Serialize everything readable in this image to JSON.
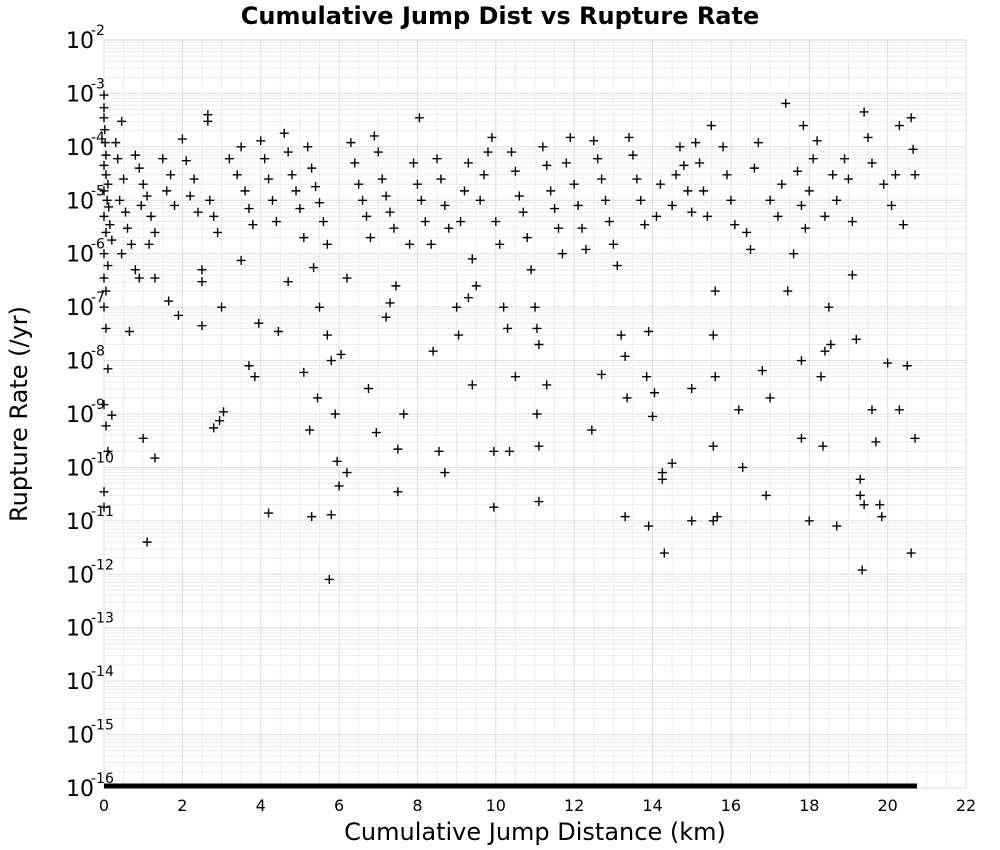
{
  "chart_data": {
    "type": "scatter",
    "title": "Cumulative Jump Dist vs Rupture Rate",
    "xlabel": "Cumulative Jump Distance (km)",
    "ylabel": "Rupture Rate (/yr)",
    "xlim": [
      0,
      22
    ],
    "ylim_log10": [
      -16,
      -2
    ],
    "y_scale": "log",
    "grid": true,
    "marker": "plus",
    "marker_color": "#000000",
    "x_ticks": [
      "0",
      "2",
      "4",
      "6",
      "8",
      "10",
      "12",
      "14",
      "16",
      "18",
      "20",
      "22"
    ],
    "y_ticks": [
      {
        "base": "10",
        "exp": "-2"
      },
      {
        "base": "10",
        "exp": "-3"
      },
      {
        "base": "10",
        "exp": "-4"
      },
      {
        "base": "10",
        "exp": "-5"
      },
      {
        "base": "10",
        "exp": "-6"
      },
      {
        "base": "10",
        "exp": "-7"
      },
      {
        "base": "10",
        "exp": "-8"
      },
      {
        "base": "10",
        "exp": "-9"
      },
      {
        "base": "10",
        "exp": "-10"
      },
      {
        "base": "10",
        "exp": "-11"
      },
      {
        "base": "10",
        "exp": "-12"
      },
      {
        "base": "10",
        "exp": "-13"
      },
      {
        "base": "10",
        "exp": "-14"
      },
      {
        "base": "10",
        "exp": "-15"
      },
      {
        "base": "10",
        "exp": "-16"
      }
    ],
    "points": [
      [
        0.0,
        0.00093
      ],
      [
        0.0,
        0.00054
      ],
      [
        0.0,
        0.00035
      ],
      [
        0.02,
        0.00021
      ],
      [
        0.03,
        0.00012
      ],
      [
        0.05,
        7e-05
      ],
      [
        0.0,
        4.5e-05
      ],
      [
        0.05,
        3e-05
      ],
      [
        0.1,
        2e-05
      ],
      [
        0.0,
        1.5e-05
      ],
      [
        0.08,
        1e-05
      ],
      [
        0.12,
        7.5e-06
      ],
      [
        0.0,
        5e-06
      ],
      [
        0.15,
        3.5e-06
      ],
      [
        0.05,
        2.5e-06
      ],
      [
        0.2,
        1.8e-06
      ],
      [
        0.0,
        1e-06
      ],
      [
        0.1,
        6e-07
      ],
      [
        0.0,
        3.5e-07
      ],
      [
        0.05,
        2e-07
      ],
      [
        0.0,
        1e-07
      ],
      [
        0.05,
        4e-08
      ],
      [
        0.1,
        7e-09
      ],
      [
        0.0,
        1.5e-09
      ],
      [
        0.05,
        6e-10
      ],
      [
        0.1,
        2e-10
      ],
      [
        0.0,
        3.5e-11
      ],
      [
        0.0,
        1.8e-11
      ],
      [
        0.2,
        9.5e-10
      ],
      [
        0.3,
        0.00012
      ],
      [
        0.45,
        0.0003
      ],
      [
        0.35,
        6e-05
      ],
      [
        0.5,
        2.5e-05
      ],
      [
        0.4,
        1e-05
      ],
      [
        0.55,
        6e-06
      ],
      [
        0.6,
        3e-06
      ],
      [
        0.7,
        1.5e-06
      ],
      [
        0.8,
        5e-07
      ],
      [
        0.45,
        1e-06
      ],
      [
        0.8,
        7e-05
      ],
      [
        0.9,
        4e-05
      ],
      [
        1.0,
        2e-05
      ],
      [
        1.1,
        1.2e-05
      ],
      [
        0.95,
        8e-06
      ],
      [
        1.2,
        5e-06
      ],
      [
        1.3,
        2.5e-06
      ],
      [
        1.15,
        1.5e-06
      ],
      [
        0.9,
        3.5e-07
      ],
      [
        1.3,
        3.5e-07
      ],
      [
        1.5,
        6e-05
      ],
      [
        1.7,
        3e-05
      ],
      [
        1.6,
        1.5e-05
      ],
      [
        1.8,
        8e-06
      ],
      [
        1.65,
        1.3e-07
      ],
      [
        1.9,
        7e-08
      ],
      [
        2.0,
        0.00014
      ],
      [
        2.1,
        5.5e-05
      ],
      [
        2.3,
        2.5e-05
      ],
      [
        2.2,
        1.2e-05
      ],
      [
        2.4,
        6e-06
      ],
      [
        2.5,
        3e-07
      ],
      [
        2.5,
        5e-07
      ],
      [
        2.5,
        4.5e-08
      ],
      [
        2.65,
        0.0004
      ],
      [
        2.65,
        0.0003
      ],
      [
        2.7,
        1e-05
      ],
      [
        2.8,
        5e-06
      ],
      [
        2.9,
        2.5e-06
      ],
      [
        3.0,
        1e-07
      ],
      [
        2.8,
        5.5e-10
      ],
      [
        2.95,
        7.5e-10
      ],
      [
        3.05,
        1.1e-09
      ],
      [
        0.65,
        3.5e-08
      ],
      [
        1.0,
        3.5e-10
      ],
      [
        1.3,
        1.5e-10
      ],
      [
        1.1,
        4e-12
      ],
      [
        3.2,
        6e-05
      ],
      [
        3.4,
        3e-05
      ],
      [
        3.5,
        0.0001
      ],
      [
        3.6,
        1.5e-05
      ],
      [
        3.7,
        7e-06
      ],
      [
        3.8,
        3.5e-06
      ],
      [
        3.5,
        7.5e-07
      ],
      [
        3.7,
        8e-09
      ],
      [
        3.85,
        5e-09
      ],
      [
        3.95,
        5e-08
      ],
      [
        4.0,
        0.00013
      ],
      [
        4.1,
        6e-05
      ],
      [
        4.2,
        2.5e-05
      ],
      [
        4.3,
        1e-05
      ],
      [
        4.4,
        4e-06
      ],
      [
        4.45,
        3.5e-08
      ],
      [
        4.2,
        1.4e-11
      ],
      [
        4.6,
        0.00018
      ],
      [
        4.7,
        8e-05
      ],
      [
        4.8,
        3e-05
      ],
      [
        4.9,
        1.5e-05
      ],
      [
        5.0,
        7e-06
      ],
      [
        4.7,
        3e-07
      ],
      [
        5.1,
        2e-06
      ],
      [
        5.2,
        0.0001
      ],
      [
        5.3,
        4e-05
      ],
      [
        5.4,
        1.8e-05
      ],
      [
        5.5,
        9e-06
      ],
      [
        5.6,
        4e-06
      ],
      [
        5.7,
        1.5e-06
      ],
      [
        5.35,
        5.5e-07
      ],
      [
        5.5,
        1e-07
      ],
      [
        5.1,
        6e-09
      ],
      [
        5.45,
        2e-09
      ],
      [
        5.25,
        5e-10
      ],
      [
        5.3,
        1.2e-11
      ],
      [
        5.7,
        3e-08
      ],
      [
        5.8,
        1e-08
      ],
      [
        5.8,
        1.3e-11
      ],
      [
        5.75,
        8e-13
      ],
      [
        5.9,
        1e-09
      ],
      [
        5.95,
        1.3e-10
      ],
      [
        6.0,
        4.5e-11
      ],
      [
        6.05,
        1.3e-08
      ],
      [
        6.2,
        8e-11
      ],
      [
        6.2,
        3.5e-07
      ],
      [
        6.3,
        0.00012
      ],
      [
        6.4,
        5e-05
      ],
      [
        6.5,
        2e-05
      ],
      [
        6.6,
        1e-05
      ],
      [
        6.7,
        5e-06
      ],
      [
        6.8,
        2e-06
      ],
      [
        6.9,
        0.00016
      ],
      [
        7.0,
        8e-05
      ],
      [
        6.75,
        3e-09
      ],
      [
        6.95,
        4.5e-10
      ],
      [
        7.1,
        2.5e-05
      ],
      [
        7.2,
        1.2e-05
      ],
      [
        7.3,
        6e-06
      ],
      [
        7.4,
        3e-06
      ],
      [
        7.2,
        6.5e-08
      ],
      [
        7.3,
        1.2e-07
      ],
      [
        7.45,
        2.5e-07
      ],
      [
        7.5,
        3.5e-11
      ],
      [
        7.5,
        2.2e-10
      ],
      [
        7.65,
        1e-09
      ],
      [
        7.8,
        1.5e-06
      ],
      [
        7.9,
        5e-05
      ],
      [
        8.0,
        2e-05
      ],
      [
        8.05,
        0.00035
      ],
      [
        8.1,
        1e-05
      ],
      [
        8.2,
        4e-06
      ],
      [
        8.35,
        1.5e-06
      ],
      [
        8.5,
        6e-05
      ],
      [
        8.6,
        2.5e-05
      ],
      [
        8.7,
        8e-06
      ],
      [
        8.8,
        3e-06
      ],
      [
        8.55,
        2e-10
      ],
      [
        8.7,
        8e-11
      ],
      [
        8.4,
        1.5e-08
      ],
      [
        9.0,
        1e-07
      ],
      [
        9.05,
        3e-08
      ],
      [
        9.1,
        4e-06
      ],
      [
        9.2,
        1.5e-05
      ],
      [
        9.3,
        5e-05
      ],
      [
        9.4,
        8e-07
      ],
      [
        9.5,
        2.5e-07
      ],
      [
        9.3,
        1.5e-07
      ],
      [
        9.4,
        3.5e-09
      ],
      [
        9.6,
        1e-05
      ],
      [
        9.7,
        3e-05
      ],
      [
        9.8,
        8e-05
      ],
      [
        9.9,
        0.00015
      ],
      [
        9.95,
        2e-10
      ],
      [
        9.95,
        1.8e-11
      ],
      [
        10.0,
        4e-06
      ],
      [
        10.1,
        1.5e-06
      ],
      [
        10.2,
        1e-07
      ],
      [
        10.3,
        4e-08
      ],
      [
        10.35,
        2e-10
      ],
      [
        10.4,
        8e-05
      ],
      [
        10.5,
        3.5e-05
      ],
      [
        10.6,
        1.2e-05
      ],
      [
        10.7,
        6e-06
      ],
      [
        10.8,
        2e-06
      ],
      [
        10.5,
        5e-09
      ],
      [
        10.9,
        5e-07
      ],
      [
        11.0,
        1e-07
      ],
      [
        11.05,
        4e-08
      ],
      [
        11.1,
        2e-08
      ],
      [
        11.05,
        1e-09
      ],
      [
        11.1,
        2.5e-10
      ],
      [
        11.1,
        2.3e-11
      ],
      [
        11.3,
        3.5e-09
      ],
      [
        11.2,
        0.0001
      ],
      [
        11.3,
        4.5e-05
      ],
      [
        11.4,
        1.5e-05
      ],
      [
        11.5,
        7e-06
      ],
      [
        11.6,
        3e-06
      ],
      [
        11.7,
        1e-06
      ],
      [
        11.8,
        5e-05
      ],
      [
        11.9,
        0.00015
      ],
      [
        12.0,
        2e-05
      ],
      [
        12.1,
        8e-06
      ],
      [
        12.2,
        3e-06
      ],
      [
        12.3,
        1.2e-06
      ],
      [
        12.45,
        5e-10
      ],
      [
        12.7,
        5.5e-09
      ],
      [
        12.5,
        0.00013
      ],
      [
        12.6,
        6e-05
      ],
      [
        12.7,
        2.5e-05
      ],
      [
        12.8,
        1e-05
      ],
      [
        12.9,
        4e-06
      ],
      [
        13.0,
        1.5e-06
      ],
      [
        13.1,
        6e-07
      ],
      [
        13.2,
        3e-08
      ],
      [
        13.3,
        1.2e-08
      ],
      [
        13.35,
        2e-09
      ],
      [
        13.3,
        1.2e-11
      ],
      [
        13.4,
        0.00015
      ],
      [
        13.5,
        7e-05
      ],
      [
        13.6,
        2.5e-05
      ],
      [
        13.7,
        1e-05
      ],
      [
        13.8,
        3.5e-06
      ],
      [
        13.9,
        8e-12
      ],
      [
        13.85,
        5e-09
      ],
      [
        13.9,
        3.5e-08
      ],
      [
        14.0,
        9e-10
      ],
      [
        14.05,
        2.5e-09
      ],
      [
        14.1,
        5e-06
      ],
      [
        14.2,
        2e-05
      ],
      [
        14.25,
        6e-11
      ],
      [
        14.25,
        8e-11
      ],
      [
        14.3,
        2.5e-12
      ],
      [
        14.5,
        1.2e-10
      ],
      [
        14.5,
        8e-06
      ],
      [
        14.6,
        3e-05
      ],
      [
        14.7,
        0.0001
      ],
      [
        14.8,
        4.5e-05
      ],
      [
        14.9,
        1.5e-05
      ],
      [
        15.0,
        6e-06
      ],
      [
        15.0,
        3e-09
      ],
      [
        15.0,
        1e-11
      ],
      [
        15.1,
        0.00012
      ],
      [
        15.2,
        5e-05
      ],
      [
        15.3,
        1.5e-05
      ],
      [
        15.4,
        5e-06
      ],
      [
        15.5,
        0.00025
      ],
      [
        15.55,
        1e-11
      ],
      [
        15.6,
        2e-07
      ],
      [
        15.55,
        3e-08
      ],
      [
        15.6,
        5e-09
      ],
      [
        15.55,
        2.5e-10
      ],
      [
        15.65,
        1.2e-11
      ],
      [
        15.8,
        0.0001
      ],
      [
        15.9,
        3e-05
      ],
      [
        16.0,
        1e-05
      ],
      [
        16.1,
        3.5e-06
      ],
      [
        16.2,
        1.2e-09
      ],
      [
        16.3,
        1e-10
      ],
      [
        16.4,
        2.5e-06
      ],
      [
        16.5,
        1.2e-06
      ],
      [
        16.6,
        4e-05
      ],
      [
        16.7,
        0.00012
      ],
      [
        16.8,
        6.5e-09
      ],
      [
        16.9,
        3e-11
      ],
      [
        17.0,
        1e-05
      ],
      [
        17.0,
        2e-09
      ],
      [
        17.2,
        5e-06
      ],
      [
        17.3,
        2e-05
      ],
      [
        17.4,
        0.00065
      ],
      [
        17.45,
        2e-07
      ],
      [
        17.6,
        1e-06
      ],
      [
        17.7,
        3.5e-05
      ],
      [
        17.8,
        8e-06
      ],
      [
        17.8,
        1e-08
      ],
      [
        17.8,
        3.5e-10
      ],
      [
        17.85,
        0.00025
      ],
      [
        17.9,
        3e-06
      ],
      [
        18.0,
        1e-11
      ],
      [
        18.0,
        1.5e-05
      ],
      [
        18.1,
        6e-05
      ],
      [
        18.2,
        0.00013
      ],
      [
        18.3,
        5e-09
      ],
      [
        18.35,
        2.5e-10
      ],
      [
        18.4,
        1.5e-08
      ],
      [
        18.4,
        5e-06
      ],
      [
        18.5,
        1e-07
      ],
      [
        18.55,
        2e-08
      ],
      [
        18.7,
        8e-12
      ],
      [
        18.6,
        3e-05
      ],
      [
        18.7,
        1e-05
      ],
      [
        18.9,
        6e-05
      ],
      [
        19.0,
        2.5e-05
      ],
      [
        19.1,
        4e-06
      ],
      [
        19.1,
        4e-07
      ],
      [
        19.2,
        2.5e-08
      ],
      [
        19.3,
        3e-11
      ],
      [
        19.3,
        6e-11
      ],
      [
        19.35,
        1.2e-12
      ],
      [
        19.4,
        2e-11
      ],
      [
        19.4,
        0.00045
      ],
      [
        19.5,
        0.00015
      ],
      [
        19.6,
        5e-05
      ],
      [
        19.6,
        1.2e-09
      ],
      [
        19.7,
        3e-10
      ],
      [
        19.8,
        2e-11
      ],
      [
        19.85,
        1.2e-11
      ],
      [
        19.9,
        2e-05
      ],
      [
        20.0,
        9e-09
      ],
      [
        20.1,
        8e-06
      ],
      [
        20.2,
        3e-05
      ],
      [
        20.3,
        0.00025
      ],
      [
        20.3,
        1.2e-09
      ],
      [
        20.4,
        3.5e-06
      ],
      [
        20.5,
        8e-09
      ],
      [
        20.6,
        0.00035
      ],
      [
        20.6,
        2.5e-12
      ],
      [
        20.65,
        9e-05
      ],
      [
        20.7,
        3e-05
      ],
      [
        20.7,
        3.5e-10
      ]
    ],
    "floor_line": {
      "x": [
        0,
        20.75
      ],
      "y": 1e-16
    }
  }
}
